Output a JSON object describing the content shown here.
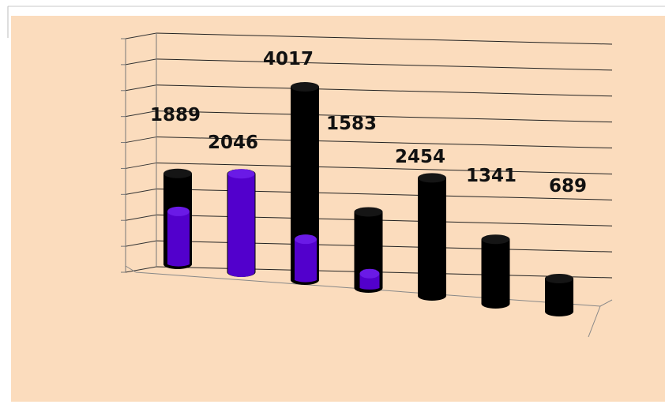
{
  "chart_data": {
    "type": "bar",
    "style": "3d-cylinder",
    "categories": [
      "",
      "",
      "",
      "",
      "",
      "",
      ""
    ],
    "series": [
      {
        "color": "#000000",
        "values": [
          1889,
          2046,
          4017,
          1583,
          2454,
          1341,
          689
        ]
      },
      {
        "color": "#5200cc",
        "values": [
          1100,
          2046,
          850,
          300,
          0,
          0,
          0
        ]
      }
    ],
    "data_labels": [
      "1889",
      "2046",
      "4017",
      "1583",
      "2454",
      "1341",
      "689"
    ],
    "title": "",
    "xlabel": "",
    "ylabel": "",
    "ylim": [
      0,
      4500
    ],
    "grid": true,
    "legend": "none",
    "background_color": "#fbdcbd"
  }
}
